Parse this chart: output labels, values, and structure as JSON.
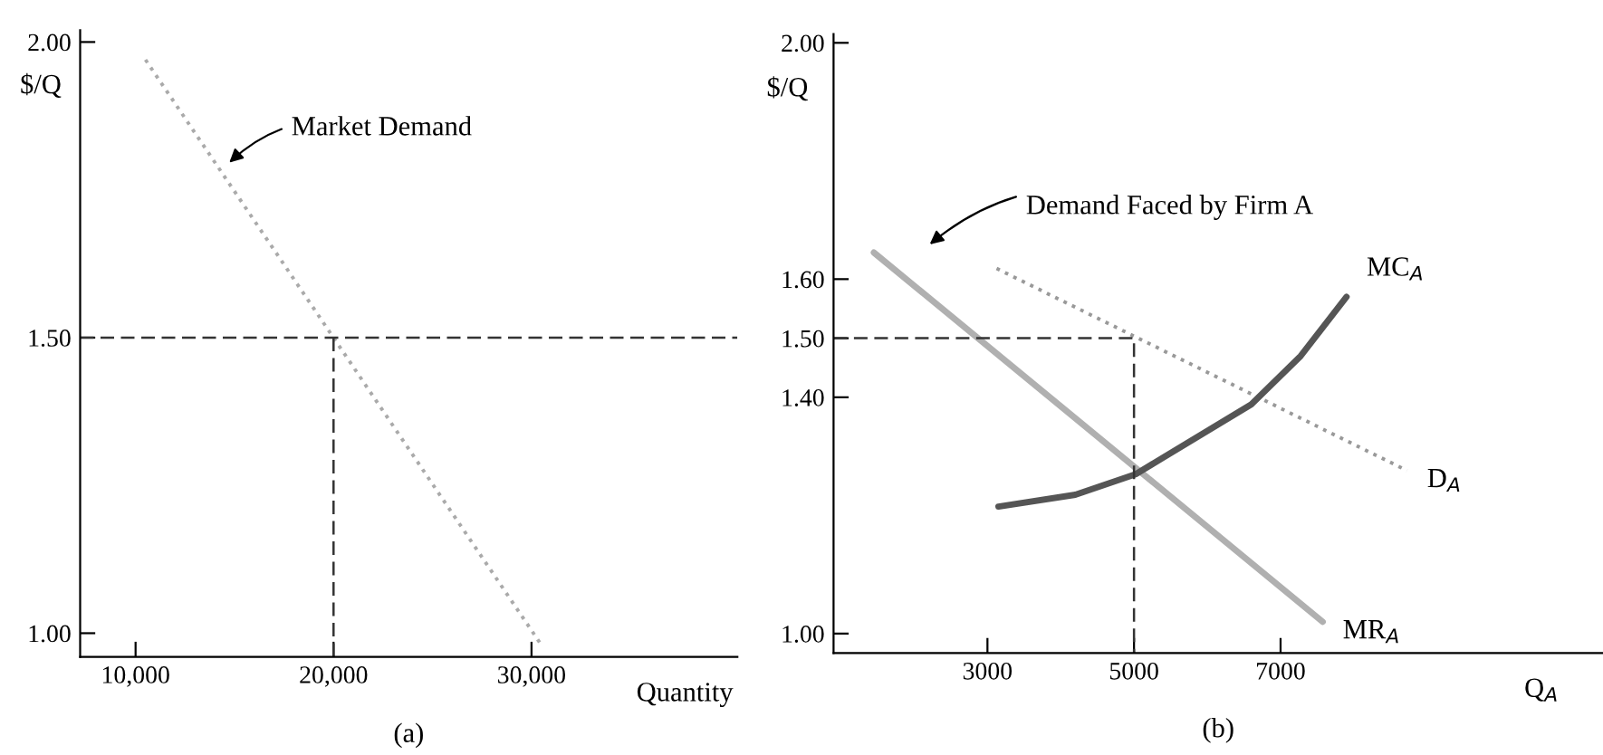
{
  "chart_data": [
    {
      "type": "line",
      "title": "(a)",
      "xlabel": "Quantity",
      "ylabel": "$/Q",
      "xlim": [
        7200,
        40400
      ],
      "ylim": [
        0.96,
        2.02
      ],
      "xticks": [
        {
          "value": 10000,
          "label": "10,000"
        },
        {
          "value": 20000,
          "label": "20,000"
        },
        {
          "value": 30000,
          "label": "30,000"
        }
      ],
      "yticks": [
        {
          "value": 1.0,
          "label": "1.00"
        },
        {
          "value": 1.5,
          "label": "1.50"
        },
        {
          "value": 2.0,
          "label": "2.00"
        }
      ],
      "series": [
        {
          "color": "#aaaaaa",
          "line_style": "dotted",
          "x": [
            10500,
            30500
          ],
          "values": [
            1.97,
            0.98
          ]
        },
        {
          "color": "#333333",
          "line_style": "dashed",
          "x": [
            20000,
            20000
          ],
          "values": [
            0.96,
            1.5
          ]
        }
      ],
      "ref_lines": [
        {
          "axis": "y",
          "value": 1.5,
          "color": "#333333",
          "line_style": "dashed"
        }
      ],
      "annotations": [
        {
          "text": "Market Demand",
          "x": 14550,
          "y": 1.79
        }
      ],
      "grid": false,
      "legend": false
    },
    {
      "type": "line",
      "title": "(b)",
      "xlabel": "Q$_{A}$",
      "ylabel": "$/Q",
      "xlim": [
        900,
        11400
      ],
      "ylim": [
        0.967,
        2.015
      ],
      "xticks": [
        3000,
        5000,
        7000
      ],
      "yticks": [
        {
          "value": 1.0,
          "label": "1.00"
        },
        {
          "value": 1.4,
          "label": "1.40"
        },
        {
          "value": 1.5,
          "label": "1.50"
        },
        {
          "value": 1.6,
          "label": "1.60"
        },
        {
          "value": 2.0,
          "label": "2.00"
        }
      ],
      "series": [
        {
          "color": "#999999",
          "line_style": "dotted",
          "x": [
            3125,
            8725
          ],
          "values": [
            1.618,
            1.276
          ]
        },
        {
          "color": "#b0b0b0",
          "line_style": "solid",
          "x": [
            1450,
            7575
          ],
          "values": [
            1.645,
            1.02
          ]
        },
        {
          "color": "#555555",
          "line_style": "solid",
          "x": [
            3150,
            4200,
            5025,
            6600,
            7275,
            7900
          ],
          "values": [
            1.215,
            1.235,
            1.27,
            1.388,
            1.47,
            1.57
          ]
        },
        {
          "color": "#333333",
          "line_style": "dashed",
          "x": [
            900,
            5000,
            5000
          ],
          "values": [
            1.5,
            1.5,
            0.967
          ]
        }
      ],
      "annotations": [
        "Demand Faced by Firm A",
        {
          "text": "MC$_{A}$",
          "x": 7900,
          "y": 1.57
        },
        {
          "text": "D$_{A}$",
          "x": 8725,
          "y": 1.276
        },
        {
          "text": "MR$_{A}$",
          "x": 7575,
          "y": 1.02
        }
      ],
      "grid": false,
      "legend": false
    }
  ]
}
